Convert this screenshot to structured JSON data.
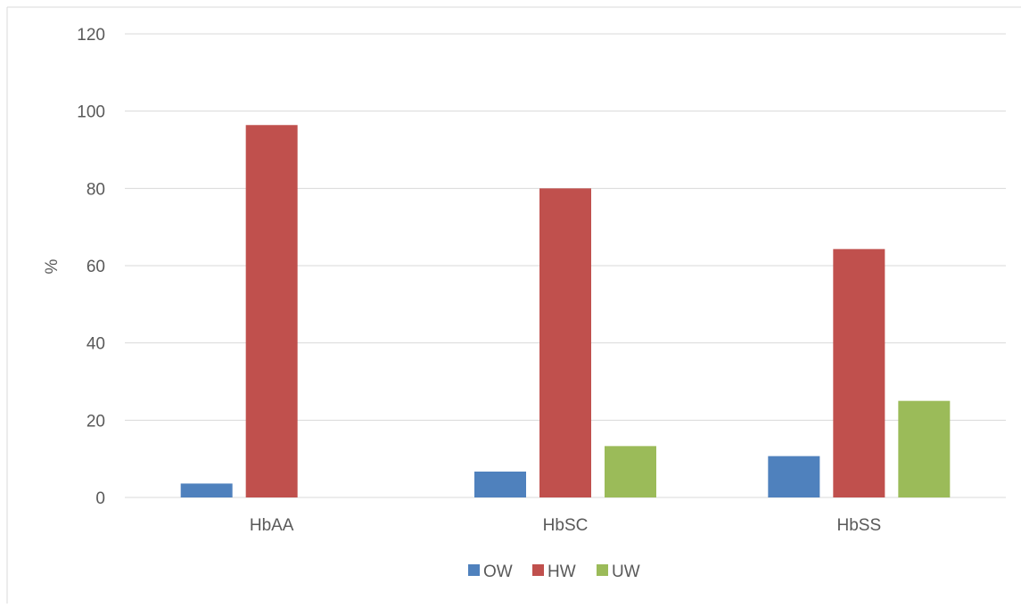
{
  "chart_data": {
    "type": "bar",
    "title": "",
    "xlabel": "",
    "ylabel": "%",
    "ylim": [
      0,
      120
    ],
    "yticks": [
      0,
      20,
      40,
      60,
      80,
      100,
      120
    ],
    "grid": true,
    "legend_position": "bottom",
    "categories": [
      "HbAA",
      "HbSC",
      "HbSS"
    ],
    "series": [
      {
        "name": "OW",
        "color": "#4f81bd",
        "values": [
          3.6,
          6.7,
          10.7
        ]
      },
      {
        "name": "HW",
        "color": "#c0504d",
        "values": [
          96.4,
          80,
          64.3
        ]
      },
      {
        "name": "UW",
        "color": "#9bbb59",
        "values": [
          0,
          13.3,
          25
        ]
      }
    ]
  }
}
